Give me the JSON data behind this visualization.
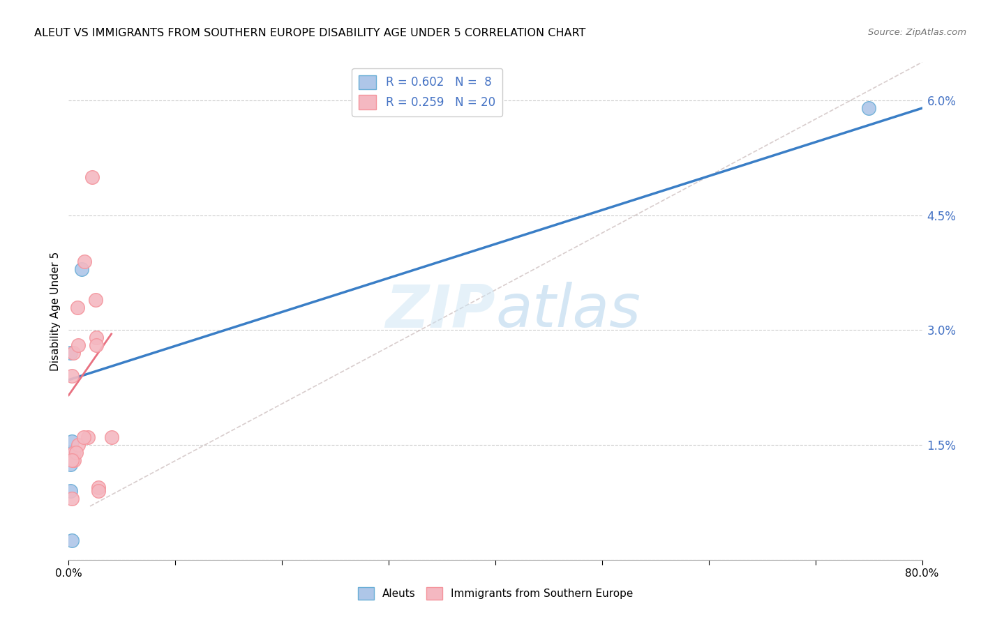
{
  "title": "ALEUT VS IMMIGRANTS FROM SOUTHERN EUROPE DISABILITY AGE UNDER 5 CORRELATION CHART",
  "source": "Source: ZipAtlas.com",
  "ylabel": "Disability Age Under 5",
  "x_min": 0.0,
  "x_max": 0.8,
  "y_min": 0.0,
  "y_max": 0.065,
  "y_ticks": [
    0.0,
    0.015,
    0.03,
    0.045,
    0.06
  ],
  "x_ticks": [
    0.0,
    0.1,
    0.2,
    0.3,
    0.4,
    0.5,
    0.6,
    0.7,
    0.8
  ],
  "legend_labels": [
    "R = 0.602   N =  8",
    "R = 0.259   N = 20"
  ],
  "legend_bottom": [
    "Aleuts",
    "Immigrants from Southern Europe"
  ],
  "aleut_fill": "#aec6e8",
  "aleut_edge": "#6aaed6",
  "immigrant_fill": "#f4b8c1",
  "immigrant_edge": "#f4949c",
  "blue_line_color": "#3a7ec6",
  "pink_line_color": "#e87080",
  "dashed_line_color": "#c8b8b8",
  "watermark_color": "#cce4f5",
  "aleut_x": [
    0.002,
    0.012,
    0.002,
    0.002,
    0.002,
    0.003,
    0.003,
    0.75
  ],
  "aleut_y": [
    0.027,
    0.038,
    0.0125,
    0.009,
    0.014,
    0.0155,
    0.0025,
    0.059
  ],
  "immigrant_x": [
    0.022,
    0.003,
    0.008,
    0.015,
    0.025,
    0.004,
    0.009,
    0.005,
    0.026,
    0.026,
    0.009,
    0.018,
    0.005,
    0.007,
    0.014,
    0.003,
    0.028,
    0.04,
    0.003,
    0.028
  ],
  "immigrant_y": [
    0.05,
    0.024,
    0.033,
    0.039,
    0.034,
    0.027,
    0.028,
    0.014,
    0.029,
    0.028,
    0.015,
    0.016,
    0.013,
    0.014,
    0.016,
    0.013,
    0.0095,
    0.016,
    0.008,
    0.009
  ],
  "blue_line_x": [
    0.0,
    0.8
  ],
  "blue_line_y": [
    0.0235,
    0.059
  ],
  "pink_line_x": [
    0.0,
    0.04
  ],
  "pink_line_y": [
    0.0215,
    0.0295
  ],
  "dashed_line_x": [
    0.02,
    0.8
  ],
  "dashed_line_y": [
    0.007,
    0.065
  ]
}
